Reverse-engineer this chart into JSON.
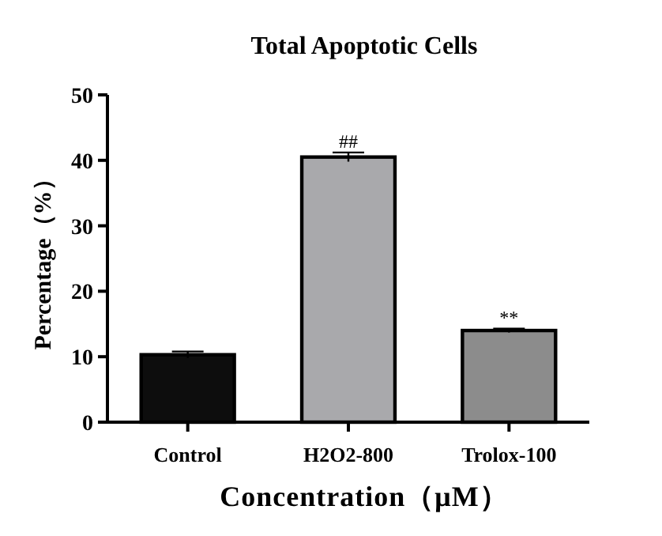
{
  "chart_data": {
    "type": "bar",
    "title": "Total Apoptotic Cells",
    "xlabel": "Concentration（μM）",
    "ylabel": "Percentage（%）",
    "categories": [
      "Control",
      "H2O2-800",
      "Trolox-100"
    ],
    "values": [
      10.3,
      40.5,
      14.0
    ],
    "errors": [
      0.5,
      0.7,
      0.3
    ],
    "colors": [
      "#0d0d0d",
      "#a9a9ac",
      "#8c8c8c"
    ],
    "ylim": [
      0,
      50
    ],
    "yticks": [
      0,
      10,
      20,
      30,
      40,
      50
    ],
    "grid": false,
    "annotations": [
      {
        "text": "##",
        "x": "H2O2-800",
        "y": 41.2
      },
      {
        "text": "**",
        "x": "Trolox-100",
        "y": 14.3
      }
    ]
  }
}
